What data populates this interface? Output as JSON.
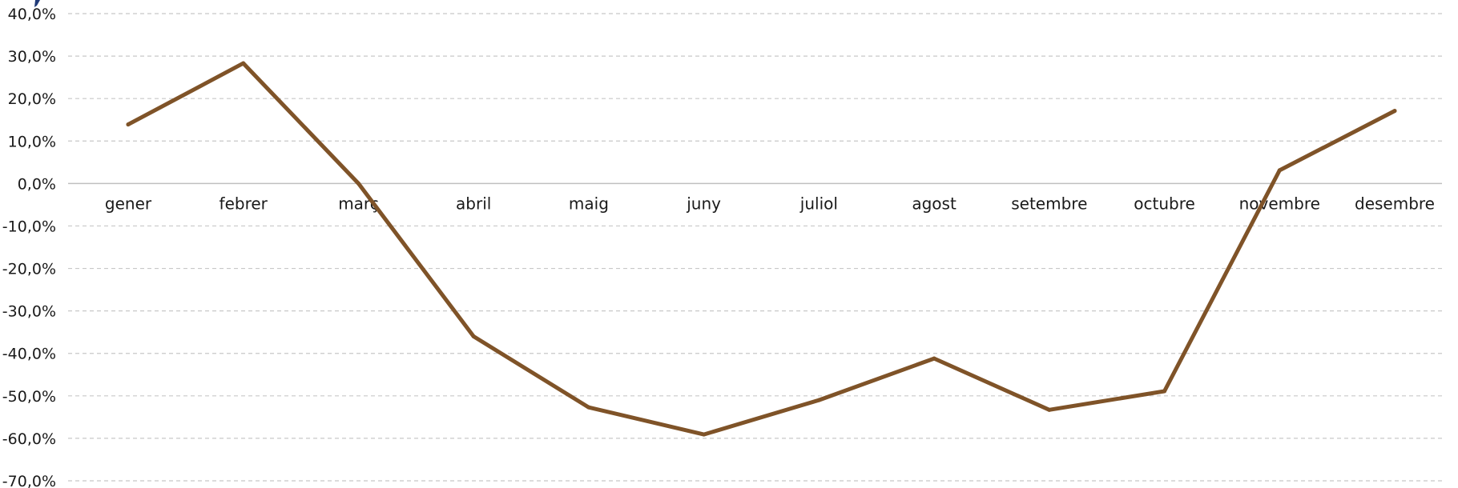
{
  "chart_data": {
    "type": "line",
    "categories": [
      "gener",
      "febrer",
      "març",
      "abril",
      "maig",
      "juny",
      "juliol",
      "agost",
      "setembre",
      "octubre",
      "novembre",
      "desembre"
    ],
    "series": [
      {
        "values": [
          13.9,
          28.3,
          0.0,
          -36.0,
          -52.7,
          -59.1,
          -51.0,
          -41.2,
          -53.3,
          -48.9,
          3.1,
          17.1
        ],
        "color": "#7f5328"
      }
    ],
    "ylim": [
      -70,
      40
    ],
    "yticks": [
      40,
      30,
      20,
      10,
      0,
      -10,
      -20,
      -30,
      -40,
      -50,
      -60,
      -70
    ],
    "ytick_labels": [
      "40,0%",
      "30,0%",
      "20,0%",
      "10,0%",
      "0,0%",
      "-10,0%",
      "-20,0%",
      "-30,0%",
      "-40,0%",
      "-50,0%",
      "-60,0%",
      "-70,0%"
    ],
    "grid": true,
    "legend": "none",
    "title": "",
    "xlabel": "",
    "ylabel": ""
  }
}
